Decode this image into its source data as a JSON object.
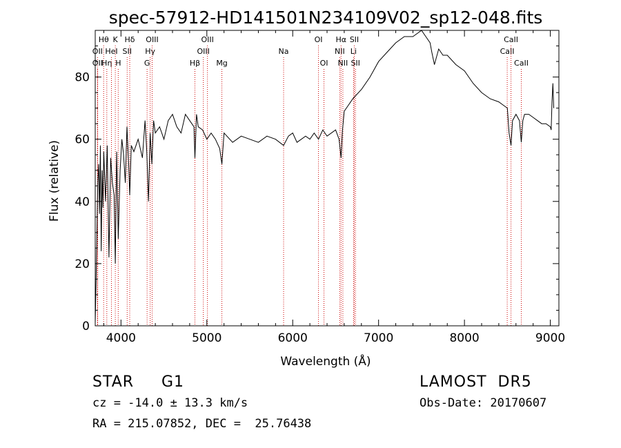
{
  "chart_data": {
    "type": "line",
    "title": "spec-57912-HD141501N234109V02_sp12-048.fits",
    "xlabel": "Wavelength (Å)",
    "ylabel": "Flux (relative)",
    "xlim": [
      3700,
      9100
    ],
    "ylim": [
      0,
      95
    ],
    "xticks": [
      4000,
      5000,
      6000,
      7000,
      8000,
      9000
    ],
    "yticks": [
      0,
      20,
      40,
      60,
      80
    ],
    "grid": false,
    "line_color": "#000000",
    "marker_color": "#cc0000",
    "spectral_lines": [
      {
        "label": "OII",
        "x": 3727,
        "row": 2
      },
      {
        "label": "OII",
        "x": 3727,
        "row": 3
      },
      {
        "label": "Hθ",
        "x": 3798,
        "row": 1
      },
      {
        "label": "Hη",
        "x": 3835,
        "row": 3
      },
      {
        "label": "HeI",
        "x": 3889,
        "row": 2
      },
      {
        "label": "K",
        "x": 3934,
        "row": 1
      },
      {
        "label": "H",
        "x": 3968,
        "row": 3
      },
      {
        "label": "SII",
        "x": 4072,
        "row": 2
      },
      {
        "label": "Hδ",
        "x": 4102,
        "row": 1
      },
      {
        "label": "G",
        "x": 4304,
        "row": 3
      },
      {
        "label": "Hγ",
        "x": 4340,
        "row": 2
      },
      {
        "label": "OIII",
        "x": 4363,
        "row": 1
      },
      {
        "label": "Hβ",
        "x": 4861,
        "row": 3
      },
      {
        "label": "OIII",
        "x": 4959,
        "row": 2
      },
      {
        "label": "OIII",
        "x": 5007,
        "row": 1
      },
      {
        "label": "Mg",
        "x": 5175,
        "row": 3
      },
      {
        "label": "Na",
        "x": 5894,
        "row": 2
      },
      {
        "label": "OI",
        "x": 6300,
        "row": 1
      },
      {
        "label": "OI",
        "x": 6364,
        "row": 3
      },
      {
        "label": "NII",
        "x": 6548,
        "row": 2
      },
      {
        "label": "Hα",
        "x": 6563,
        "row": 1
      },
      {
        "label": "NII",
        "x": 6584,
        "row": 3
      },
      {
        "label": "Li",
        "x": 6708,
        "row": 2
      },
      {
        "label": "SII",
        "x": 6717,
        "row": 1
      },
      {
        "label": "SII",
        "x": 6731,
        "row": 3
      },
      {
        "label": "CaII",
        "x": 8498,
        "row": 2
      },
      {
        "label": "CaII",
        "x": 8542,
        "row": 1
      },
      {
        "label": "CaII",
        "x": 8662,
        "row": 3
      }
    ],
    "series": [
      {
        "x": [
          3700,
          3710,
          3720,
          3730,
          3740,
          3750,
          3760,
          3770,
          3780,
          3790,
          3800,
          3820,
          3840,
          3860,
          3880,
          3900,
          3920,
          3934,
          3950,
          3968,
          3990,
          4010,
          4030,
          4050,
          4070,
          4090,
          4102,
          4120,
          4150,
          4200,
          4250,
          4280,
          4300,
          4320,
          4340,
          4360,
          4380,
          4400,
          4450,
          4500,
          4550,
          4600,
          4650,
          4700,
          4750,
          4800,
          4850,
          4861,
          4880,
          4900,
          4950,
          5000,
          5050,
          5100,
          5150,
          5175,
          5200,
          5300,
          5400,
          5500,
          5600,
          5700,
          5800,
          5894,
          5950,
          6000,
          6050,
          6100,
          6150,
          6200,
          6250,
          6300,
          6350,
          6400,
          6450,
          6500,
          6540,
          6563,
          6580,
          6600,
          6650,
          6700,
          6800,
          6900,
          7000,
          7100,
          7200,
          7300,
          7400,
          7500,
          7550,
          7600,
          7620,
          7650,
          7700,
          7750,
          7800,
          7900,
          8000,
          8100,
          8200,
          8300,
          8400,
          8450,
          8500,
          8520,
          8542,
          8560,
          8600,
          8640,
          8662,
          8680,
          8700,
          8750,
          8800,
          8850,
          8900,
          8950,
          9000,
          9010,
          9020,
          9030,
          9040
        ],
        "y": [
          1,
          14,
          30,
          46,
          52,
          36,
          58,
          24,
          50,
          38,
          56,
          40,
          58,
          22,
          54,
          46,
          42,
          20,
          56,
          28,
          50,
          60,
          55,
          46,
          64,
          52,
          42,
          58,
          56,
          60,
          54,
          66,
          56,
          40,
          62,
          52,
          66,
          62,
          64,
          60,
          66,
          68,
          64,
          62,
          68,
          66,
          64,
          54,
          68,
          64,
          63,
          60,
          62,
          60,
          57,
          52,
          62,
          59,
          61,
          60,
          59,
          61,
          60,
          58,
          61,
          62,
          59,
          60,
          61,
          60,
          62,
          60,
          63,
          61,
          62,
          63,
          60,
          54,
          63,
          69,
          71,
          73,
          76,
          80,
          85,
          88,
          91,
          93,
          93,
          95,
          93,
          91,
          88,
          84,
          89,
          87,
          87,
          84,
          82,
          78,
          75,
          73,
          72,
          71,
          70,
          62,
          58,
          66,
          68,
          66,
          59,
          66,
          68,
          68,
          67,
          66,
          65,
          65,
          64,
          63,
          72,
          78,
          70
        ]
      }
    ]
  },
  "labels": {
    "object_class": "STAR     G1",
    "survey": "LAMOST  DR5",
    "redshift": "cz = -14.0 ± 13.3 km/s",
    "obs_date": "Obs-Date: 20170607",
    "coords": "RA = 215.07852, DEC =  25.76438"
  }
}
